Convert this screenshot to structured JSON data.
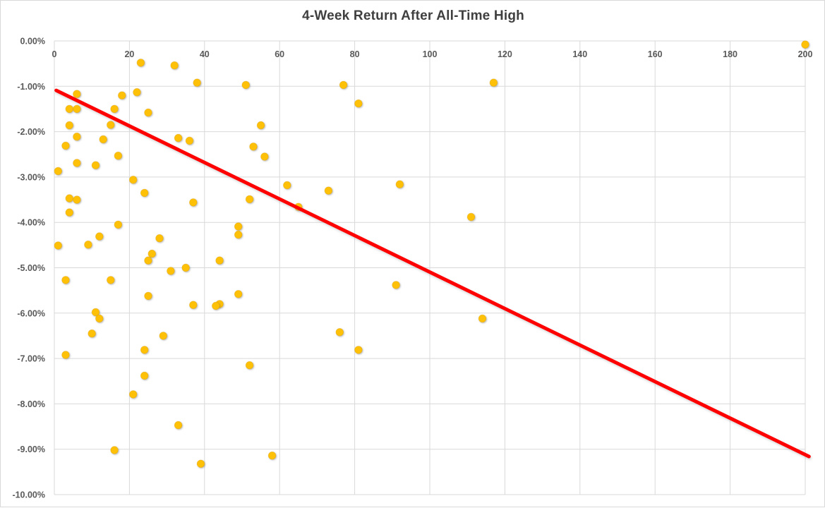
{
  "chart_data": {
    "type": "scatter",
    "title": "4-Week Return After All-Time High",
    "xlabel": "",
    "ylabel": "",
    "xlim": [
      0,
      200
    ],
    "ylim": [
      -10,
      0
    ],
    "grid": true,
    "legend": "none",
    "x_ticks": [
      "0",
      "20",
      "40",
      "60",
      "80",
      "100",
      "120",
      "140",
      "160",
      "180",
      "200"
    ],
    "x_tick_values": [
      0,
      20,
      40,
      60,
      80,
      100,
      120,
      140,
      160,
      180,
      200
    ],
    "y_ticks": [
      "0.00%",
      "-1.00%",
      "-2.00%",
      "-3.00%",
      "-4.00%",
      "-5.00%",
      "-6.00%",
      "-7.00%",
      "-8.00%",
      "-9.00%",
      "-10.00%"
    ],
    "y_tick_values": [
      0,
      -1,
      -2,
      -3,
      -4,
      -5,
      -6,
      -7,
      -8,
      -9,
      -10
    ],
    "n_points": 77,
    "series": [
      {
        "marker": "circle",
        "color": "#FFC008",
        "points": [
          [
            200,
            -0.08
          ],
          [
            23,
            -0.48
          ],
          [
            32,
            -0.54
          ],
          [
            38,
            -0.92
          ],
          [
            117,
            -0.92
          ],
          [
            51,
            -0.97
          ],
          [
            77,
            -0.97
          ],
          [
            22,
            -1.13
          ],
          [
            6,
            -1.17
          ],
          [
            18,
            -1.2
          ],
          [
            81,
            -1.38
          ],
          [
            4,
            -1.5
          ],
          [
            6,
            -1.5
          ],
          [
            16,
            -1.5
          ],
          [
            25,
            -1.58
          ],
          [
            15,
            -1.85
          ],
          [
            4,
            -1.86
          ],
          [
            55,
            -1.86
          ],
          [
            6,
            -2.11
          ],
          [
            33,
            -2.14
          ],
          [
            13,
            -2.17
          ],
          [
            36,
            -2.2
          ],
          [
            3,
            -2.31
          ],
          [
            53,
            -2.33
          ],
          [
            17,
            -2.53
          ],
          [
            56,
            -2.55
          ],
          [
            6,
            -2.69
          ],
          [
            11,
            -2.74
          ],
          [
            1,
            -2.87
          ],
          [
            21,
            -3.06
          ],
          [
            92,
            -3.16
          ],
          [
            62,
            -3.18
          ],
          [
            73,
            -3.3
          ],
          [
            24,
            -3.35
          ],
          [
            4,
            -3.47
          ],
          [
            52,
            -3.49
          ],
          [
            6,
            -3.5
          ],
          [
            37,
            -3.56
          ],
          [
            65,
            -3.66
          ],
          [
            4,
            -3.78
          ],
          [
            111,
            -3.88
          ],
          [
            17,
            -4.05
          ],
          [
            49,
            -4.09
          ],
          [
            49,
            -4.27
          ],
          [
            12,
            -4.31
          ],
          [
            28,
            -4.35
          ],
          [
            9,
            -4.49
          ],
          [
            1,
            -4.51
          ],
          [
            26,
            -4.69
          ],
          [
            25,
            -4.84
          ],
          [
            44,
            -4.84
          ],
          [
            35,
            -5.0
          ],
          [
            31,
            -5.07
          ],
          [
            3,
            -5.27
          ],
          [
            15,
            -5.27
          ],
          [
            91,
            -5.38
          ],
          [
            49,
            -5.58
          ],
          [
            25,
            -5.62
          ],
          [
            44,
            -5.8
          ],
          [
            37,
            -5.82
          ],
          [
            43,
            -5.84
          ],
          [
            11,
            -5.98
          ],
          [
            12,
            -6.12
          ],
          [
            114,
            -6.12
          ],
          [
            76,
            -6.42
          ],
          [
            10,
            -6.45
          ],
          [
            29,
            -6.5
          ],
          [
            24,
            -6.81
          ],
          [
            81,
            -6.81
          ],
          [
            3,
            -6.92
          ],
          [
            52,
            -7.15
          ],
          [
            24,
            -7.38
          ],
          [
            21,
            -7.79
          ],
          [
            33,
            -8.47
          ],
          [
            16,
            -9.02
          ],
          [
            58,
            -9.14
          ],
          [
            39,
            -9.32
          ]
        ]
      }
    ],
    "trendline": {
      "style": "linear",
      "x1": 0.5,
      "y1": -1.09,
      "x2": 201,
      "y2": -9.16
    },
    "colors": {
      "background": "#FFFFFF",
      "gridline": "#D9D9D9",
      "chart_border": "#D9D9D9",
      "tick_label": "#595959",
      "title": "#3F3F3F",
      "marker": "#FFC008",
      "marker_edge": "#DFA100",
      "trendline": "#FE0000"
    }
  }
}
